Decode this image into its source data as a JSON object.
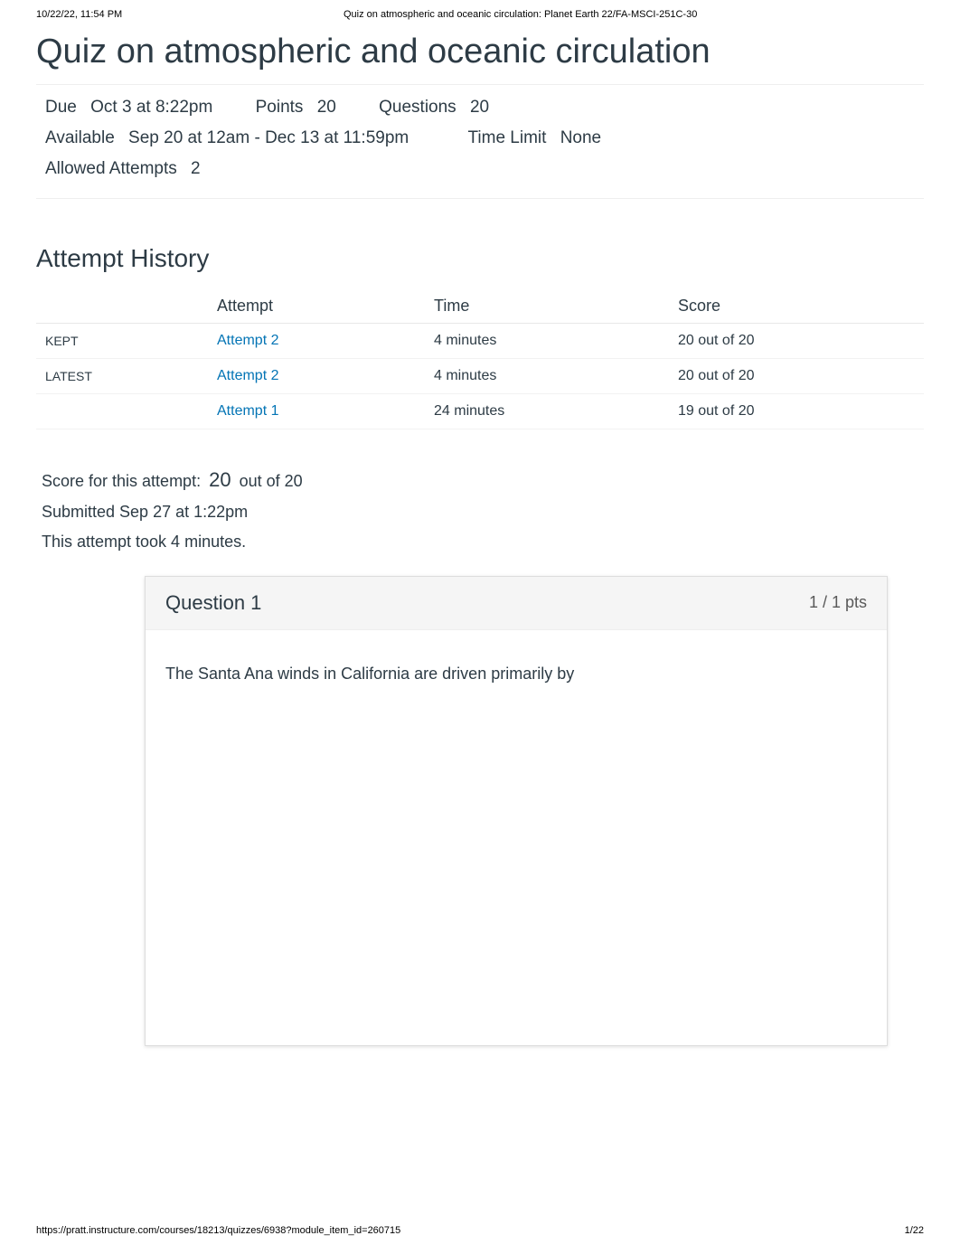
{
  "print_header": {
    "datetime": "10/22/22, 11:54 PM",
    "doc_title": "Quiz on atmospheric and oceanic circulation: Planet Earth 22/FA-MSCI-251C-30"
  },
  "page_title": "Quiz on atmospheric and oceanic circulation",
  "meta": {
    "due_label": "Due",
    "due_value": "Oct 3 at 8:22pm",
    "points_label": "Points",
    "points_value": "20",
    "questions_label": "Questions",
    "questions_value": "20",
    "available_label": "Available",
    "available_value": "Sep 20 at 12am - Dec 13 at 11:59pm",
    "timelimit_label": "Time Limit",
    "timelimit_value": "None",
    "allowed_label": "Allowed Attempts",
    "allowed_value": "2"
  },
  "history": {
    "title": "Attempt History",
    "columns": {
      "tag": "",
      "attempt": "Attempt",
      "time": "Time",
      "score": "Score"
    },
    "rows": [
      {
        "tag": "KEPT",
        "attempt": "Attempt 2",
        "time": "4 minutes",
        "score": "20 out of 20"
      },
      {
        "tag": "LATEST",
        "attempt": "Attempt 2",
        "time": "4 minutes",
        "score": "20 out of 20"
      },
      {
        "tag": "",
        "attempt": "Attempt 1",
        "time": "24 minutes",
        "score": "19 out of 20"
      }
    ]
  },
  "summary": {
    "score_prefix": "Score for this attempt:",
    "score_value": "20",
    "score_suffix": "out of 20",
    "submitted": "Submitted Sep 27 at 1:22pm",
    "duration": "This attempt took 4 minutes."
  },
  "question": {
    "title": "Question 1",
    "points": "1 / 1 pts",
    "body": "The Santa Ana winds in California are driven primarily by"
  },
  "print_footer": {
    "url": "https://pratt.instructure.com/courses/18213/quizzes/6938?module_item_id=260715",
    "page": "1/22"
  },
  "colors": {
    "link": "#0374b5",
    "text": "#2d3b45",
    "muted": "#595959",
    "border": "#eeeeee"
  }
}
